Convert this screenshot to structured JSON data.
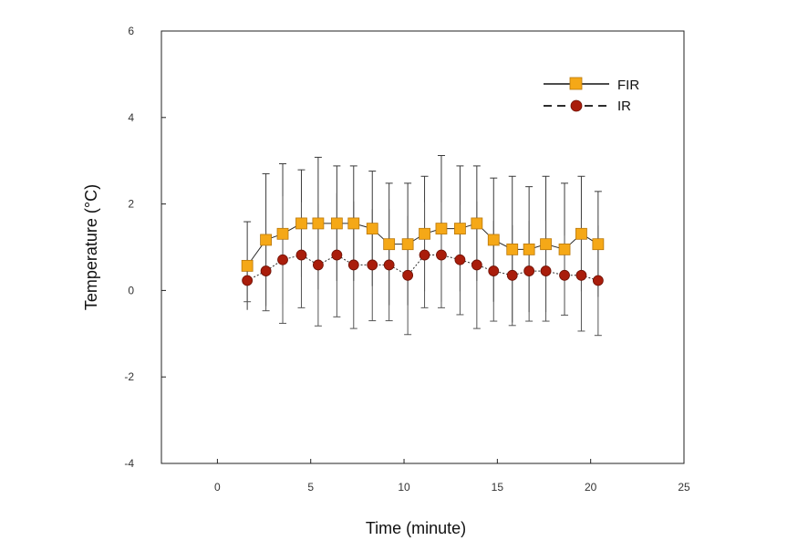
{
  "chart_data": {
    "type": "line",
    "title": "",
    "xlabel": "Time (minute)",
    "ylabel": "Temperature (°C)",
    "xlim": [
      -3,
      25
    ],
    "ylim": [
      -4,
      6
    ],
    "x_ticks": [
      0,
      5,
      10,
      15,
      20,
      25
    ],
    "y_ticks": [
      -4,
      -2,
      0,
      2,
      4,
      6
    ],
    "grid": false,
    "legend_position": "top-right",
    "series": [
      {
        "name": "FIR",
        "color": "#f5a817",
        "marker": "square",
        "line_style": "solid",
        "x": [
          1.6,
          2.6,
          3.5,
          4.5,
          5.4,
          6.4,
          7.3,
          8.3,
          9.2,
          10.2,
          11.1,
          12.0,
          13.0,
          13.9,
          14.8,
          15.8,
          16.7,
          17.6,
          18.6,
          19.5,
          20.4
        ],
        "y": [
          0.57,
          1.17,
          1.31,
          1.55,
          1.55,
          1.55,
          1.55,
          1.43,
          1.07,
          1.07,
          1.31,
          1.43,
          1.43,
          1.55,
          1.17,
          0.95,
          0.95,
          1.07,
          0.95,
          1.31,
          1.07
        ],
        "error": [
          1.02,
          1.53,
          1.62,
          1.24,
          1.53,
          1.33,
          1.33,
          1.33,
          1.41,
          1.41,
          1.33,
          1.69,
          1.45,
          1.33,
          1.43,
          1.69,
          1.45,
          1.57,
          1.53,
          1.33,
          1.22
        ]
      },
      {
        "name": "IR",
        "color": "#a91d0b",
        "marker": "circle",
        "line_style": "dashed",
        "x": [
          1.6,
          2.6,
          3.5,
          4.5,
          5.4,
          6.4,
          7.3,
          8.3,
          9.2,
          10.2,
          11.1,
          12.0,
          13.0,
          13.9,
          14.8,
          15.8,
          16.7,
          17.6,
          18.6,
          19.5,
          20.4
        ],
        "y": [
          0.23,
          0.45,
          0.71,
          0.82,
          0.59,
          0.82,
          0.59,
          0.59,
          0.59,
          0.35,
          0.82,
          0.82,
          0.71,
          0.59,
          0.45,
          0.35,
          0.45,
          0.45,
          0.35,
          0.35,
          0.23
        ],
        "error": [
          0.49,
          0.92,
          1.47,
          1.22,
          1.41,
          1.43,
          1.47,
          1.29,
          1.29,
          1.37,
          1.22,
          1.22,
          1.27,
          1.47,
          1.16,
          1.16,
          1.16,
          1.16,
          0.92,
          1.29,
          1.27
        ]
      }
    ]
  }
}
